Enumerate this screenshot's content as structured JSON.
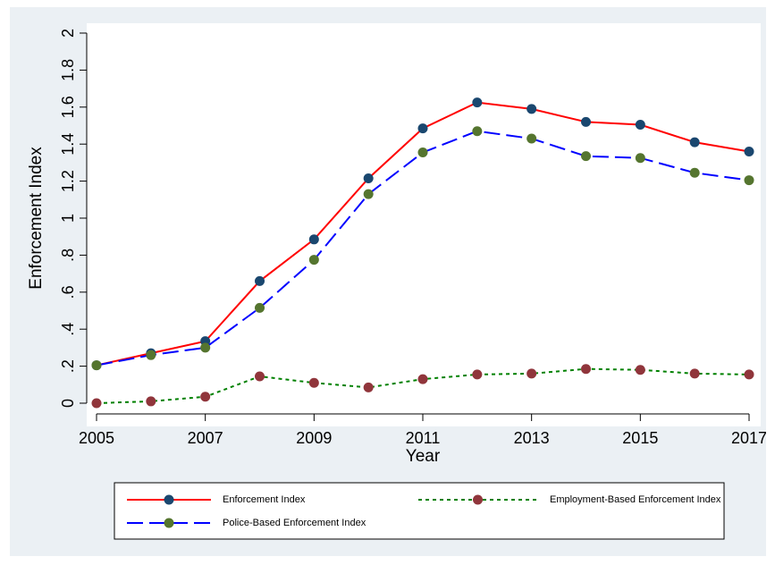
{
  "chart_data": {
    "type": "line",
    "xlabel": "Year",
    "ylabel": "Enforcement Index",
    "x": [
      2005,
      2006,
      2007,
      2008,
      2009,
      2010,
      2011,
      2012,
      2013,
      2014,
      2015,
      2016,
      2017
    ],
    "xlim": [
      2005,
      2017
    ],
    "ylim": [
      0,
      2
    ],
    "x_ticks": [
      "2005",
      "2007",
      "2009",
      "2011",
      "2013",
      "2015",
      "2017"
    ],
    "y_ticks": [
      "0",
      ".2",
      ".4",
      ".6",
      ".8",
      "1",
      "1.2",
      "1.4",
      "1.6",
      "1.8",
      "2"
    ],
    "grid": false,
    "legend_position": "bottom",
    "series": [
      {
        "name": "Enforcement Index",
        "values": [
          0.205,
          0.27,
          0.335,
          0.66,
          0.885,
          1.215,
          1.485,
          1.625,
          1.59,
          1.52,
          1.505,
          1.41,
          1.36
        ],
        "line_color": "#ff0000",
        "marker_color": "#1a476f",
        "dash": "solid"
      },
      {
        "name": "Employment-Based Enforcement Index",
        "values": [
          0.0,
          0.01,
          0.035,
          0.145,
          0.11,
          0.085,
          0.13,
          0.155,
          0.16,
          0.185,
          0.18,
          0.16,
          0.155
        ],
        "line_color": "#008000",
        "marker_color": "#90353b",
        "dash": "dot"
      },
      {
        "name": "Police-Based Enforcement Index",
        "values": [
          0.205,
          0.26,
          0.3,
          0.515,
          0.775,
          1.13,
          1.355,
          1.47,
          1.43,
          1.335,
          1.325,
          1.245,
          1.205
        ],
        "line_color": "#0000ff",
        "marker_color": "#55752f",
        "dash": "dash"
      }
    ]
  }
}
